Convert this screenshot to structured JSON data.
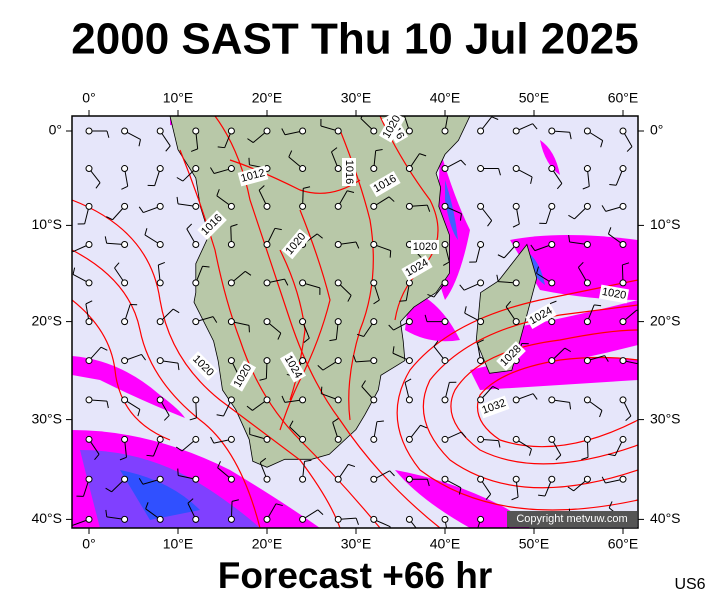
{
  "header": {
    "title": "2000 SAST Thu 10 Jul 2025"
  },
  "map": {
    "lon_labels": [
      "0°",
      "10°E",
      "20°E",
      "30°E",
      "40°E",
      "50°E",
      "60°E"
    ],
    "lat_labels": [
      "0°",
      "10°S",
      "20°S",
      "30°S",
      "40°S"
    ],
    "isobar_labels": [
      "1016",
      "1020",
      "1012",
      "1016",
      "1016",
      "1016",
      "1020",
      "1020",
      "1024",
      "1020",
      "1024",
      "1020",
      "1020",
      "1024",
      "1028",
      "1032"
    ],
    "copyright": "Copyright metvuw.com"
  },
  "footer": {
    "forecast": "Forecast +66 hr",
    "code": "US6"
  }
}
